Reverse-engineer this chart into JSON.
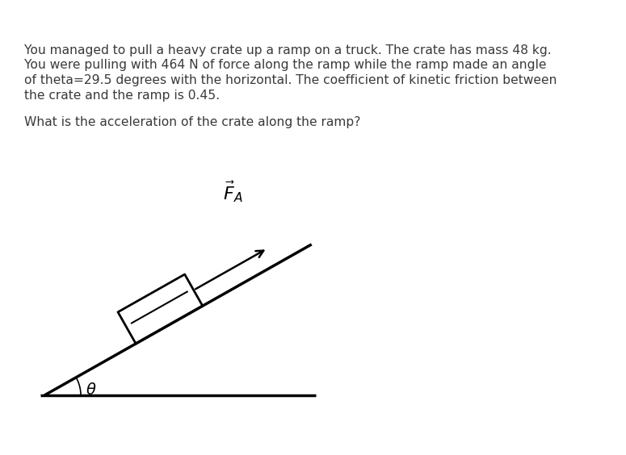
{
  "background_color": "#ffffff",
  "text_color": "#3a3a3a",
  "paragraph1_lines": [
    "You managed to pull a heavy crate up a ramp on a truck. The crate has mass 48 kg.",
    "You were pulling with 464 N of force along the ramp while the ramp made an angle",
    "of theta=29.5 degrees with the horizontal. The coefficient of kinetic friction between",
    "the crate and the ramp is 0.45."
  ],
  "paragraph2": "What is the acceleration of the crate along the ramp?",
  "theta_deg": 29.5,
  "text_fontsize": 11.2,
  "diagram_line_color": "#000000",
  "theta_label": "θ"
}
